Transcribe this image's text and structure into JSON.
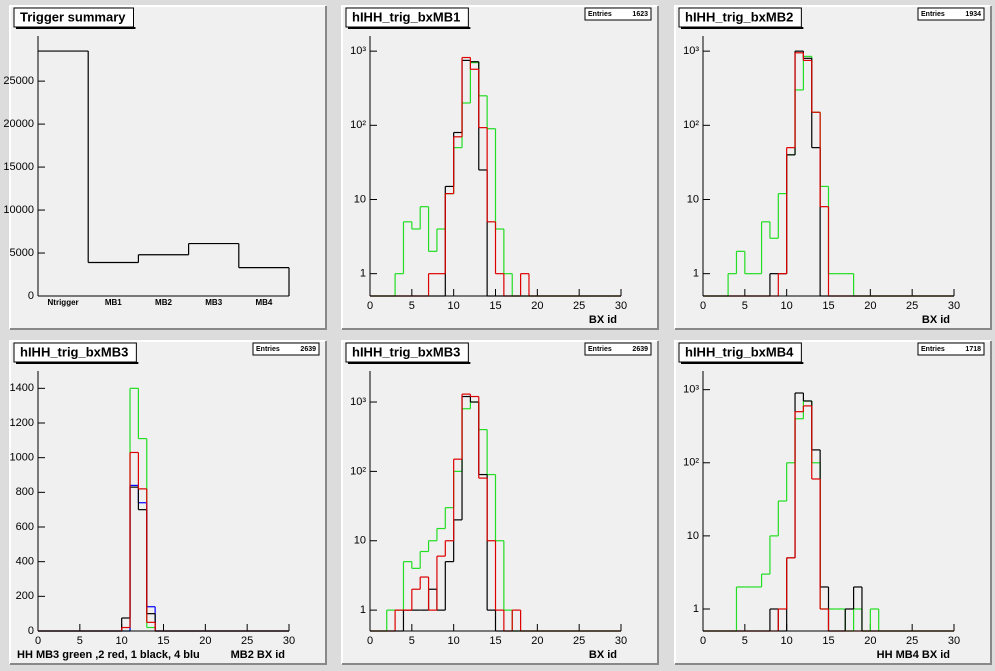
{
  "chart_data": [
    {
      "type": "bar",
      "title": "Trigger summary",
      "categories": [
        "Ntrigger",
        "MB1",
        "MB2",
        "MB3",
        "MB4"
      ],
      "values": [
        28500,
        3900,
        4800,
        6100,
        3300
      ],
      "color": "#000000",
      "ylim": [
        0,
        30250
      ],
      "yticks": [
        0,
        5000,
        10000,
        15000,
        20000,
        25000
      ]
    },
    {
      "type": "histogram",
      "title": "hIHH_trig_bxMB1",
      "stats": {
        "label": "Entries",
        "value": 1623
      },
      "log": true,
      "xlabel": "BX id",
      "bins": [
        0,
        1,
        2,
        3,
        4,
        5,
        6,
        7,
        8,
        9,
        10,
        11,
        12,
        13,
        14,
        15,
        16,
        17,
        18,
        19,
        20,
        21,
        22,
        23,
        24,
        25,
        26,
        27,
        28,
        29,
        30
      ],
      "xlim": [
        0,
        30
      ],
      "xticks": [
        0,
        5,
        10,
        15,
        20,
        25,
        30
      ],
      "ylim": [
        0.5,
        1600
      ],
      "yticks": [
        1,
        10,
        {
          "value": 100,
          "label": "10²"
        },
        {
          "value": 1000,
          "label": "10³"
        }
      ],
      "series": [
        {
          "color": "#22dd22",
          "values": [
            0,
            0,
            0,
            1,
            5,
            4,
            8,
            2,
            4,
            12,
            50,
            200,
            700,
            250,
            90,
            4,
            1,
            0,
            0,
            0,
            0,
            0,
            0,
            0,
            0,
            0,
            0,
            0,
            0,
            0
          ]
        },
        {
          "color": "#000000",
          "values": [
            0,
            0,
            0,
            0,
            0,
            0,
            0,
            0,
            0,
            15,
            80,
            750,
            720,
            25,
            0,
            0,
            0,
            0,
            0,
            0,
            0,
            0,
            0,
            0,
            0,
            0,
            0,
            0,
            0,
            0
          ]
        },
        {
          "color": "#dd0000",
          "values": [
            0,
            0,
            0,
            0,
            0,
            0,
            0,
            1,
            1,
            12,
            70,
            820,
            570,
            93,
            5,
            1,
            0,
            0,
            1,
            0,
            0,
            0,
            0,
            0,
            0,
            0,
            0,
            0,
            0,
            0
          ]
        }
      ]
    },
    {
      "type": "histogram",
      "title": "hIHH_trig_bxMB2",
      "stats": {
        "label": "Entries",
        "value": 1934
      },
      "log": true,
      "xlabel": "BX id",
      "bins": [
        0,
        1,
        2,
        3,
        4,
        5,
        6,
        7,
        8,
        9,
        10,
        11,
        12,
        13,
        14,
        15,
        16,
        17,
        18,
        19,
        20,
        21,
        22,
        23,
        24,
        25,
        26,
        27,
        28,
        29,
        30
      ],
      "xlim": [
        0,
        30
      ],
      "xticks": [
        0,
        5,
        10,
        15,
        20,
        25,
        30
      ],
      "ylim": [
        0.5,
        1600
      ],
      "yticks": [
        1,
        10,
        {
          "value": 100,
          "label": "10²"
        },
        {
          "value": 1000,
          "label": "10³"
        }
      ],
      "series": [
        {
          "color": "#22dd22",
          "values": [
            0,
            0,
            0,
            1,
            2,
            1,
            1,
            5,
            3,
            12,
            40,
            300,
            850,
            150,
            15,
            1,
            1,
            1,
            0,
            0,
            0,
            0,
            0,
            0,
            0,
            0,
            0,
            0,
            0,
            0
          ]
        },
        {
          "color": "#000000",
          "values": [
            0,
            0,
            0,
            0,
            0,
            0,
            0,
            0,
            1,
            1,
            40,
            1000,
            800,
            50,
            0,
            0,
            0,
            0,
            0,
            0,
            0,
            0,
            0,
            0,
            0,
            0,
            0,
            0,
            0,
            0
          ]
        },
        {
          "color": "#dd0000",
          "values": [
            0,
            0,
            0,
            0,
            0,
            0,
            0,
            0,
            0,
            1,
            50,
            950,
            750,
            150,
            8,
            0,
            0,
            0,
            0,
            0,
            0,
            0,
            0,
            0,
            0,
            0,
            0,
            0,
            0,
            0
          ]
        }
      ]
    },
    {
      "type": "histogram",
      "title": "hIHH_trig_bxMB3",
      "stats": {
        "label": "Entries",
        "value": 2639
      },
      "log": false,
      "xlabel": "MB2 BX id",
      "annotation": "HH  MB3 green ,2 red, 1 black, 4 blu",
      "bins": [
        0,
        1,
        2,
        3,
        4,
        5,
        6,
        7,
        8,
        9,
        10,
        11,
        12,
        13,
        14,
        15,
        16,
        17,
        18,
        19,
        20,
        21,
        22,
        23,
        24,
        25,
        26,
        27,
        28,
        29,
        30
      ],
      "xlim": [
        0,
        30
      ],
      "xticks": [
        0,
        5,
        10,
        15,
        20,
        25,
        30
      ],
      "ylim": [
        0,
        1500
      ],
      "yticks": [
        0,
        200,
        400,
        600,
        800,
        1000,
        1200,
        1400
      ],
      "series": [
        {
          "color": "#22dd22",
          "values": [
            0,
            0,
            0,
            0,
            0,
            0,
            0,
            0,
            0,
            0,
            0,
            1400,
            1110,
            20,
            0,
            0,
            0,
            0,
            0,
            0,
            0,
            0,
            0,
            0,
            0,
            0,
            0,
            0,
            0,
            0
          ]
        },
        {
          "color": "#0000ff",
          "values": [
            0,
            0,
            0,
            0,
            0,
            0,
            0,
            0,
            0,
            0,
            0,
            840,
            740,
            140,
            0,
            0,
            0,
            0,
            0,
            0,
            0,
            0,
            0,
            0,
            0,
            0,
            0,
            0,
            0,
            0
          ]
        },
        {
          "color": "#000000",
          "values": [
            0,
            0,
            0,
            0,
            0,
            0,
            0,
            0,
            0,
            0,
            75,
            830,
            700,
            100,
            0,
            0,
            0,
            0,
            0,
            0,
            0,
            0,
            0,
            0,
            0,
            0,
            0,
            0,
            0,
            0
          ]
        },
        {
          "color": "#dd0000",
          "values": [
            0,
            0,
            0,
            0,
            0,
            0,
            0,
            0,
            0,
            0,
            20,
            1030,
            820,
            50,
            0,
            0,
            0,
            0,
            0,
            0,
            0,
            0,
            0,
            0,
            0,
            0,
            0,
            0,
            0,
            0
          ]
        }
      ]
    },
    {
      "type": "histogram",
      "title": "hIHH_trig_bxMB3",
      "stats": {
        "label": "Entries",
        "value": 2639
      },
      "log": true,
      "xlabel": "BX id",
      "bins": [
        0,
        1,
        2,
        3,
        4,
        5,
        6,
        7,
        8,
        9,
        10,
        11,
        12,
        13,
        14,
        15,
        16,
        17,
        18,
        19,
        20,
        21,
        22,
        23,
        24,
        25,
        26,
        27,
        28,
        29,
        30
      ],
      "xlim": [
        0,
        30
      ],
      "xticks": [
        0,
        5,
        10,
        15,
        20,
        25,
        30
      ],
      "ylim": [
        0.5,
        2800
      ],
      "yticks": [
        1,
        10,
        {
          "value": 100,
          "label": "10²"
        },
        {
          "value": 1000,
          "label": "10³"
        }
      ],
      "series": [
        {
          "color": "#22dd22",
          "values": [
            0,
            0,
            1,
            1,
            5,
            4,
            7,
            10,
            15,
            30,
            100,
            800,
            1000,
            400,
            90,
            10,
            1,
            0,
            0,
            0,
            0,
            0,
            0,
            0,
            0,
            0,
            0,
            0,
            0,
            0
          ]
        },
        {
          "color": "#000000",
          "values": [
            0,
            0,
            0,
            0,
            1,
            1,
            1,
            2,
            1,
            5,
            20,
            1200,
            1000,
            90,
            1,
            0,
            0,
            0,
            0,
            0,
            0,
            0,
            0,
            0,
            0,
            0,
            0,
            0,
            0,
            0
          ]
        },
        {
          "color": "#dd0000",
          "values": [
            0,
            0,
            0,
            1,
            1,
            2,
            3,
            1,
            6,
            10,
            150,
            1300,
            1200,
            80,
            10,
            1,
            0,
            1,
            0,
            0,
            0,
            0,
            0,
            0,
            0,
            0,
            0,
            0,
            0,
            0
          ]
        }
      ]
    },
    {
      "type": "histogram",
      "title": "hIHH_trig_bxMB4",
      "stats": {
        "label": "Entries",
        "value": 1718
      },
      "log": true,
      "xlabel": "HH MB4 BX id",
      "bins": [
        0,
        1,
        2,
        3,
        4,
        5,
        6,
        7,
        8,
        9,
        10,
        11,
        12,
        13,
        14,
        15,
        16,
        17,
        18,
        19,
        20,
        21,
        22,
        23,
        24,
        25,
        26,
        27,
        28,
        29,
        30
      ],
      "xlim": [
        0,
        30
      ],
      "xticks": [
        0,
        5,
        10,
        15,
        20,
        25,
        30
      ],
      "ylim": [
        0.5,
        1800
      ],
      "yticks": [
        1,
        10,
        {
          "value": 100,
          "label": "10²"
        },
        {
          "value": 1000,
          "label": "10³"
        }
      ],
      "series": [
        {
          "color": "#22dd22",
          "values": [
            0,
            0,
            0,
            0,
            2,
            2,
            2,
            3,
            10,
            30,
            100,
            400,
            700,
            100,
            1,
            1,
            1,
            0,
            1,
            0,
            1,
            0,
            0,
            0,
            0,
            0,
            0,
            0,
            0,
            0
          ]
        },
        {
          "color": "#000000",
          "values": [
            0,
            0,
            0,
            0,
            0,
            0,
            0,
            0,
            1,
            0,
            5,
            900,
            700,
            150,
            2,
            0,
            0,
            1,
            2,
            0,
            0,
            0,
            0,
            0,
            0,
            0,
            0,
            0,
            0,
            0
          ]
        },
        {
          "color": "#dd0000",
          "values": [
            0,
            0,
            0,
            0,
            0,
            0,
            0,
            0,
            0,
            1,
            5,
            500,
            600,
            60,
            1,
            0,
            0,
            0,
            0,
            0,
            0,
            0,
            0,
            0,
            0,
            0,
            0,
            0,
            0,
            0
          ]
        }
      ]
    }
  ]
}
